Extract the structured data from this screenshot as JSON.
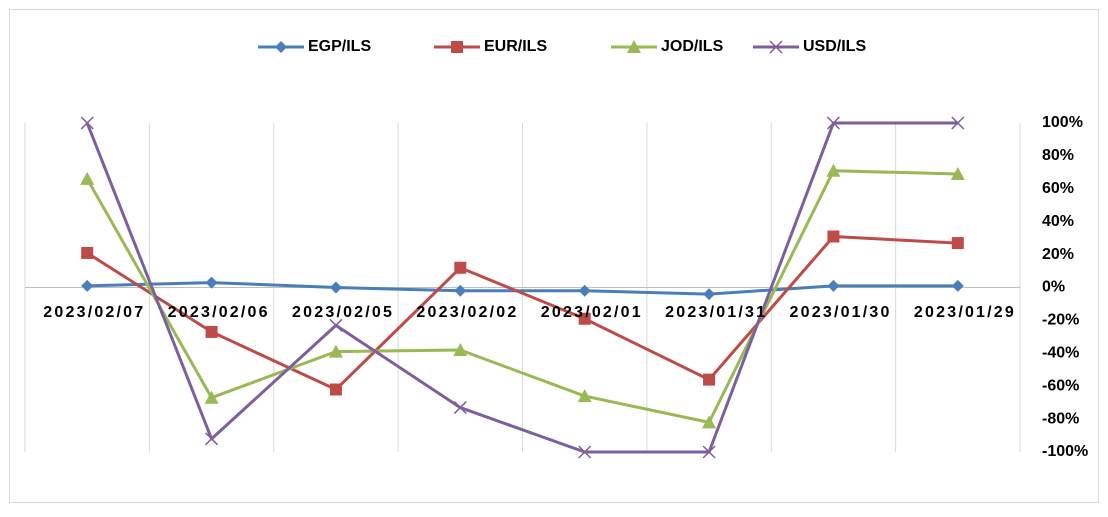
{
  "chart_data": {
    "type": "line",
    "categories": [
      "2023/02/07",
      "2023/02/06",
      "2023/02/05",
      "2023/02/02",
      "2023/02/01",
      "2023/01/31",
      "2023/01/30",
      "2023/01/29"
    ],
    "series": [
      {
        "name": "EGP/ILS",
        "color": "#4a7ebb",
        "marker": "diamond",
        "values": [
          1,
          3,
          0,
          -2,
          -2,
          -4,
          1,
          1
        ]
      },
      {
        "name": "EUR/ILS",
        "color": "#be4b48",
        "marker": "square",
        "values": [
          21,
          -27,
          -62,
          12,
          -19,
          -56,
          31,
          27
        ]
      },
      {
        "name": "JOD/ILS",
        "color": "#98b954",
        "marker": "triangle",
        "values": [
          66,
          -67,
          -39,
          -38,
          -66,
          -82,
          71,
          69
        ]
      },
      {
        "name": "USD/ILS",
        "color": "#7d5fa0",
        "marker": "x",
        "values": [
          100,
          -92,
          -23,
          -73,
          -100,
          -100,
          100,
          100
        ]
      }
    ],
    "ylim": [
      -100,
      100
    ],
    "yticks": [
      {
        "value": -100,
        "label": "-100%"
      },
      {
        "value": -80,
        "label": "-80%"
      },
      {
        "value": -60,
        "label": "-60%"
      },
      {
        "value": -40,
        "label": "-40%"
      },
      {
        "value": -20,
        "label": "-20%"
      },
      {
        "value": 0,
        "label": "0%"
      },
      {
        "value": 20,
        "label": "20%"
      },
      {
        "value": 40,
        "label": "40%"
      },
      {
        "value": 60,
        "label": "60%"
      },
      {
        "value": 80,
        "label": "80%"
      },
      {
        "value": 100,
        "label": "100%"
      }
    ],
    "yaxis_side": "right",
    "legend": "top"
  }
}
